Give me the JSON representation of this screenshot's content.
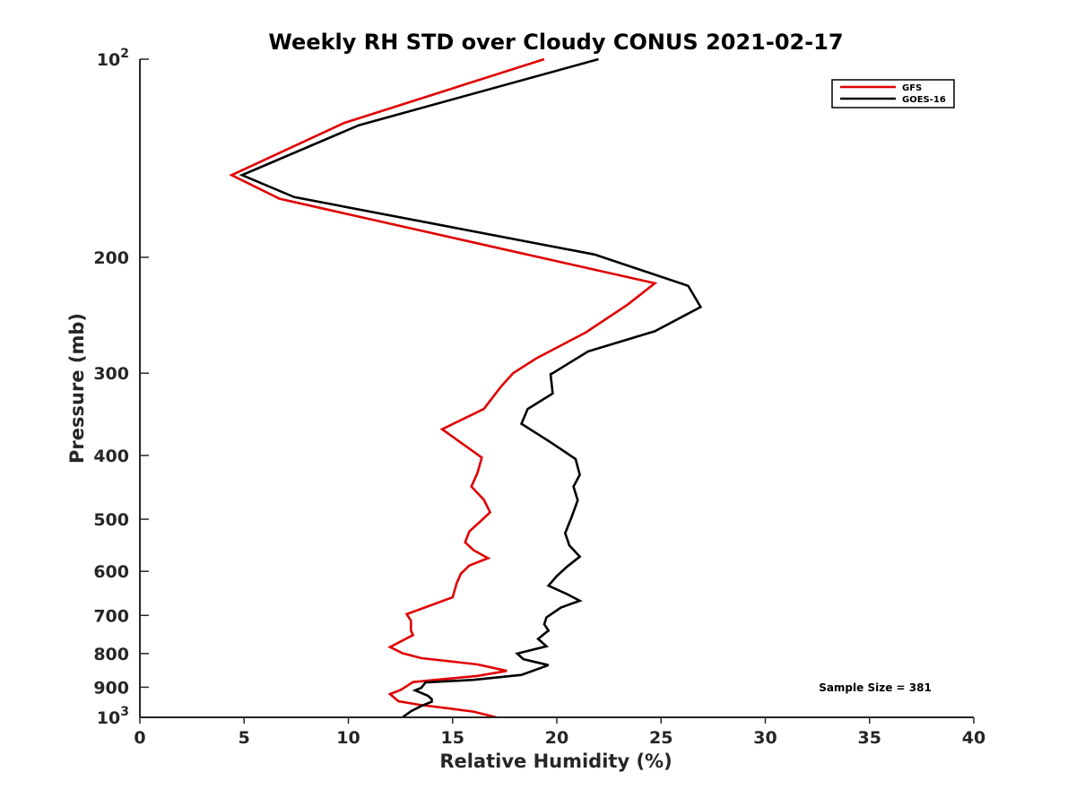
{
  "chart_data": {
    "type": "line",
    "title": "Weekly RH STD over Cloudy CONUS 2021-02-17",
    "xlabel": "Relative Humidity (%)",
    "ylabel": "Pressure (mb)",
    "xlim": [
      0,
      40
    ],
    "ylim": [
      100,
      1000
    ],
    "y_scale": "log",
    "y_reversed": true,
    "grid": false,
    "legend_position": "top-right",
    "x_ticks": [
      0,
      5,
      10,
      15,
      20,
      25,
      30,
      35,
      40
    ],
    "y_ticks": [
      {
        "value": 100,
        "label_base": "10",
        "label_exp": "2"
      },
      {
        "value": 200,
        "label": "200"
      },
      {
        "value": 300,
        "label": "300"
      },
      {
        "value": 400,
        "label": "400"
      },
      {
        "value": 500,
        "label": "500"
      },
      {
        "value": 600,
        "label": "600"
      },
      {
        "value": 700,
        "label": "700"
      },
      {
        "value": 800,
        "label": "800"
      },
      {
        "value": 900,
        "label": "900"
      },
      {
        "value": 1000,
        "label_base": "10",
        "label_exp": "3"
      }
    ],
    "annotation": "Sample Size = 381",
    "series": [
      {
        "name": "GFS",
        "color": "#e00000",
        "points": [
          [
            19.4,
            100
          ],
          [
            9.8,
            125
          ],
          [
            4.4,
            150
          ],
          [
            6.7,
            163
          ],
          [
            24.7,
            219
          ],
          [
            23.4,
            236
          ],
          [
            21.4,
            260
          ],
          [
            19.0,
            285
          ],
          [
            17.9,
            300
          ],
          [
            17.3,
            315
          ],
          [
            16.5,
            340
          ],
          [
            14.5,
            365
          ],
          [
            16.4,
            403
          ],
          [
            16.2,
            425
          ],
          [
            15.9,
            446
          ],
          [
            16.5,
            467
          ],
          [
            16.8,
            488
          ],
          [
            16.3,
            505
          ],
          [
            15.8,
            522
          ],
          [
            15.6,
            542
          ],
          [
            16.0,
            557
          ],
          [
            16.7,
            573
          ],
          [
            15.8,
            588
          ],
          [
            15.4,
            605
          ],
          [
            15.2,
            625
          ],
          [
            15.0,
            657
          ],
          [
            12.8,
            697
          ],
          [
            13.0,
            713
          ],
          [
            13.0,
            738
          ],
          [
            13.1,
            750
          ],
          [
            12.0,
            782
          ],
          [
            12.6,
            799
          ],
          [
            13.5,
            813
          ],
          [
            16.2,
            831
          ],
          [
            17.6,
            850
          ],
          [
            16.2,
            865
          ],
          [
            14.2,
            877
          ],
          [
            13.1,
            884
          ],
          [
            12.5,
            909
          ],
          [
            12.0,
            922
          ],
          [
            12.4,
            945
          ],
          [
            13.4,
            957
          ],
          [
            15.0,
            971
          ],
          [
            16.0,
            980
          ],
          [
            17.1,
            1000
          ]
        ]
      },
      {
        "name": "GOES-16",
        "color": "#000000",
        "points": [
          [
            22.0,
            100
          ],
          [
            10.5,
            126
          ],
          [
            4.9,
            150
          ],
          [
            7.4,
            162
          ],
          [
            21.8,
            198
          ],
          [
            26.3,
            221
          ],
          [
            26.9,
            238
          ],
          [
            24.7,
            259
          ],
          [
            21.5,
            278
          ],
          [
            19.8,
            300
          ],
          [
            19.7,
            301
          ],
          [
            19.8,
            322
          ],
          [
            18.6,
            340
          ],
          [
            18.3,
            358
          ],
          [
            19.7,
            382
          ],
          [
            20.9,
            405
          ],
          [
            21.1,
            428
          ],
          [
            20.8,
            446
          ],
          [
            21.0,
            468
          ],
          [
            20.7,
            497
          ],
          [
            20.4,
            525
          ],
          [
            20.6,
            548
          ],
          [
            21.1,
            570
          ],
          [
            20.5,
            590
          ],
          [
            20.0,
            610
          ],
          [
            19.6,
            631
          ],
          [
            20.5,
            650
          ],
          [
            21.1,
            665
          ],
          [
            20.2,
            681
          ],
          [
            19.5,
            705
          ],
          [
            19.4,
            722
          ],
          [
            19.6,
            738
          ],
          [
            19.1,
            760
          ],
          [
            19.5,
            780
          ],
          [
            18.1,
            800
          ],
          [
            18.4,
            816
          ],
          [
            19.6,
            833
          ],
          [
            18.3,
            862
          ],
          [
            16.0,
            877
          ],
          [
            13.7,
            885
          ],
          [
            13.5,
            902
          ],
          [
            13.2,
            910
          ],
          [
            13.8,
            927
          ],
          [
            14.0,
            938
          ],
          [
            14.0,
            947
          ],
          [
            13.5,
            961
          ],
          [
            13.0,
            979
          ],
          [
            12.6,
            1000
          ]
        ]
      }
    ]
  }
}
